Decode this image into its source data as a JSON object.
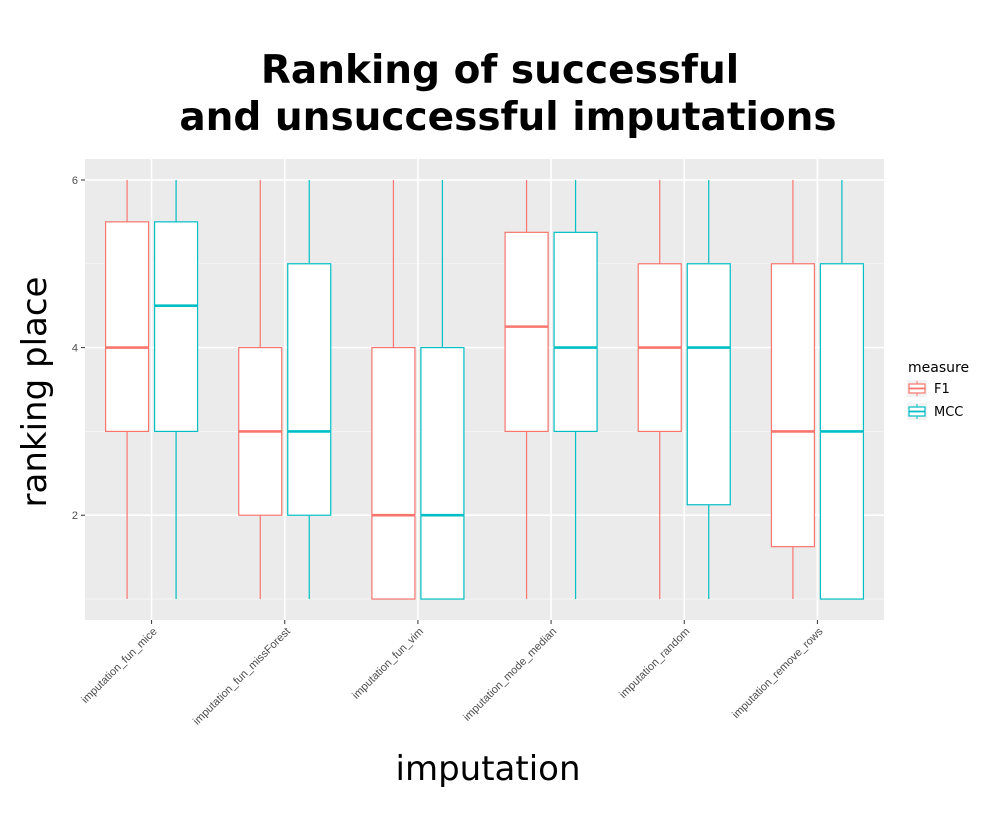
{
  "chart_data": {
    "type": "boxplot",
    "title_lines": [
      "Ranking of successful",
      "and unsuccessful imputations"
    ],
    "xlabel": "imputation",
    "ylabel": "ranking place",
    "ylim": [
      0.75,
      6.25
    ],
    "y_ticks": [
      2,
      4,
      6
    ],
    "grid": true,
    "legend": {
      "title": "measure",
      "position": "right"
    },
    "categories": [
      "imputation_fun_mice",
      "imputation_fun_missForest",
      "imputation_fun_vim",
      "imputation_mode_median",
      "imputation_random",
      "imputation_remove_rows"
    ],
    "series": [
      {
        "name": "F1",
        "color": "#F8766D",
        "boxes": [
          {
            "min": 1,
            "q1": 3,
            "median": 4,
            "q3": 5.5,
            "max": 6
          },
          {
            "min": 1,
            "q1": 2,
            "median": 3,
            "q3": 4,
            "max": 6
          },
          {
            "min": 1,
            "q1": 1,
            "median": 2,
            "q3": 4,
            "max": 6
          },
          {
            "min": 1,
            "q1": 3,
            "median": 4.25,
            "q3": 5.375,
            "max": 6
          },
          {
            "min": 1,
            "q1": 3,
            "median": 4,
            "q3": 5,
            "max": 6
          },
          {
            "min": 1,
            "q1": 1.625,
            "median": 3,
            "q3": 5,
            "max": 6
          }
        ]
      },
      {
        "name": "MCC",
        "color": "#00BFC4",
        "boxes": [
          {
            "min": 1,
            "q1": 3,
            "median": 4.5,
            "q3": 5.5,
            "max": 6
          },
          {
            "min": 1,
            "q1": 2,
            "median": 3,
            "q3": 5,
            "max": 6
          },
          {
            "min": 1,
            "q1": 1,
            "median": 2,
            "q3": 4,
            "max": 6
          },
          {
            "min": 1,
            "q1": 3,
            "median": 4,
            "q3": 5.375,
            "max": 6
          },
          {
            "min": 1,
            "q1": 2.125,
            "median": 4,
            "q3": 5,
            "max": 6
          },
          {
            "min": 1,
            "q1": 1,
            "median": 3,
            "q3": 5,
            "max": 6
          }
        ]
      }
    ]
  }
}
